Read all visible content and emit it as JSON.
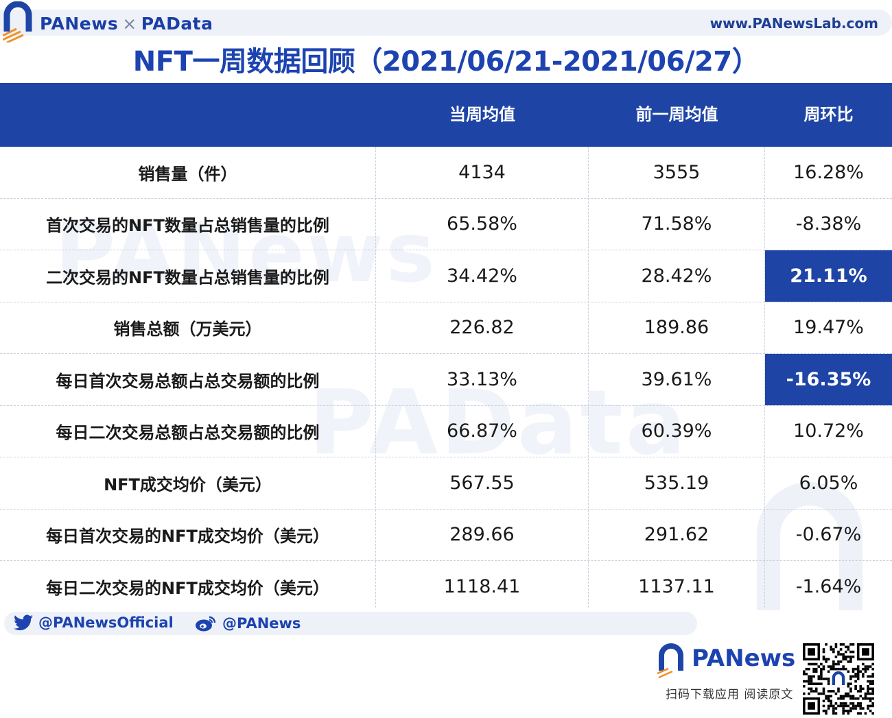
{
  "header": {
    "brand_left": "PANews",
    "brand_sep": "×",
    "brand_right": "PAData",
    "site_url": "www.PANewsLab.com"
  },
  "chart_data": {
    "type": "table",
    "title": "NFT一周数据回顾（2021/06/21-2021/06/27）",
    "columns": [
      "",
      "当周均值",
      "前一周均值",
      "周环比"
    ],
    "rows": [
      {
        "label": "销售量（件）",
        "current": "4134",
        "previous": "3555",
        "change": "16.28%",
        "highlight": false
      },
      {
        "label": "首次交易的NFT数量占总销售量的比例",
        "current": "65.58%",
        "previous": "71.58%",
        "change": "-8.38%",
        "highlight": false
      },
      {
        "label": "二次交易的NFT数量占总销售量的比例",
        "current": "34.42%",
        "previous": "28.42%",
        "change": "21.11%",
        "highlight": true
      },
      {
        "label": "销售总额（万美元）",
        "current": "226.82",
        "previous": "189.86",
        "change": "19.47%",
        "highlight": false
      },
      {
        "label": "每日首次交易总额占总交易额的比例",
        "current": "33.13%",
        "previous": "39.61%",
        "change": "-16.35%",
        "highlight": true
      },
      {
        "label": "每日二次交易总额占总交易额的比例",
        "current": "66.87%",
        "previous": "60.39%",
        "change": "10.72%",
        "highlight": false
      },
      {
        "label": "NFT成交均价（美元）",
        "current": "567.55",
        "previous": "535.19",
        "change": "6.05%",
        "highlight": false
      },
      {
        "label": "每日首次交易的NFT成交均价（美元）",
        "current": "289.66",
        "previous": "291.62",
        "change": "-0.67%",
        "highlight": false
      },
      {
        "label": "每日二次交易的NFT成交均价（美元）",
        "current": "1118.41",
        "previous": "1137.11",
        "change": "-1.64%",
        "highlight": false
      }
    ]
  },
  "watermarks": [
    "PANews",
    "PAData"
  ],
  "footer": {
    "twitter": "@PANewsOfficial",
    "weibo": "@PANews",
    "brand": "PANews",
    "scan_text": "扫码下载应用  阅读原文"
  },
  "colors": {
    "primary": "#1e44a6",
    "title": "#1c43b0",
    "band": "#eef1f8",
    "accent": "#f0902a"
  },
  "icons": [
    "panews-arch-logo-icon",
    "twitter-bird-icon",
    "weibo-icon",
    "qr-code-icon"
  ]
}
